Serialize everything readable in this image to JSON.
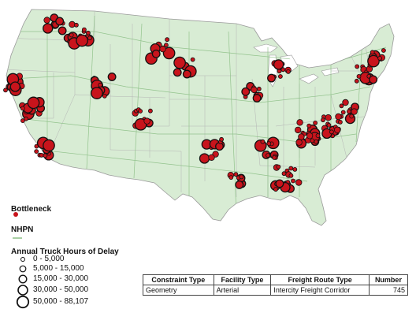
{
  "legend": {
    "bottleneck_label": "Bottleneck",
    "network_label": "NHPN",
    "delay_title": "Annual Truck Hours of Delay",
    "classes": [
      {
        "label": "0 - 5,000"
      },
      {
        "label": "5,000 - 15,000"
      },
      {
        "label": "15,000 - 30,000"
      },
      {
        "label": "30,000 - 50,000"
      },
      {
        "label": "50,000 - 88,107"
      }
    ]
  },
  "table": {
    "headers": [
      "Constraint Type",
      "Facility Type",
      "Freight Route Type",
      "Number"
    ],
    "rows": [
      [
        "Geometry",
        "Arterial",
        "Intercity Freight Corridor",
        "745"
      ]
    ]
  },
  "colors": {
    "land": "#d8ecd4",
    "water": "#ffffff",
    "bottleneck": "#c8141c",
    "network": "#8cbf86",
    "ring": "#111111"
  }
}
